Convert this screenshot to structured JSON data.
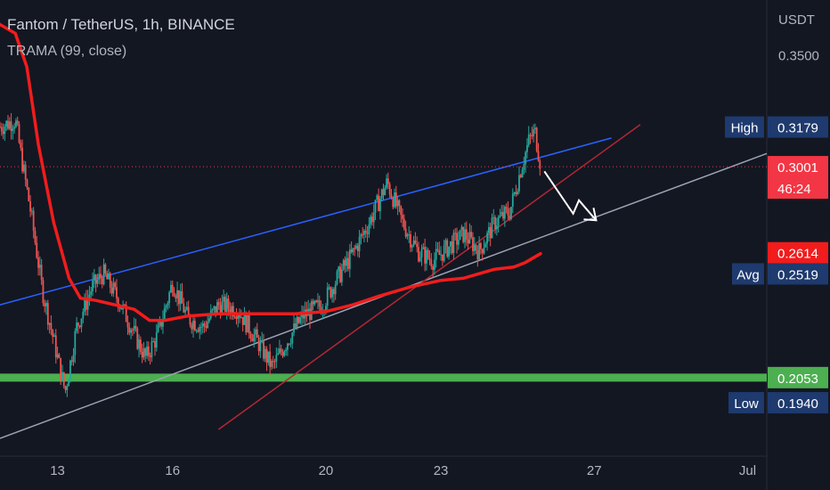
{
  "header": {
    "title": "Fantom / TetherUS, 1h, BINANCE",
    "indicator": "TRAMA (99, close)"
  },
  "chart_data": {
    "type": "candlestick",
    "currency": "USDT",
    "ylim": [
      0.17,
      0.375
    ],
    "y_ticks": [
      {
        "value": 0.35,
        "label": "0.3500"
      }
    ],
    "x_ticks": [
      {
        "day": 13,
        "label": "13"
      },
      {
        "day": 16,
        "label": "16"
      },
      {
        "day": 20,
        "label": "20"
      },
      {
        "day": 23,
        "label": "23"
      },
      {
        "day": 27,
        "label": "27"
      },
      {
        "day": 31,
        "label": "Jul"
      }
    ],
    "x_range_days": [
      11.5,
      31.5
    ],
    "price_labels": {
      "high": {
        "title": "High",
        "value": "0.3179",
        "price": 0.3179
      },
      "current": {
        "value": "0.3001",
        "countdown": "46:24",
        "price": 0.3001
      },
      "trama": {
        "value": "0.2614",
        "price": 0.2614
      },
      "avg": {
        "title": "Avg",
        "value": "0.2519",
        "price": 0.2519
      },
      "support": {
        "value": "0.2053",
        "price": 0.2053
      },
      "low": {
        "title": "Low",
        "value": "0.1940",
        "price": 0.194
      }
    },
    "close_path": [
      {
        "day": 11.5,
        "price": 0.318
      },
      {
        "day": 11.9,
        "price": 0.321
      },
      {
        "day": 12.1,
        "price": 0.3
      },
      {
        "day": 12.3,
        "price": 0.28
      },
      {
        "day": 12.6,
        "price": 0.245
      },
      {
        "day": 12.9,
        "price": 0.222
      },
      {
        "day": 13.2,
        "price": 0.199
      },
      {
        "day": 13.5,
        "price": 0.228
      },
      {
        "day": 13.9,
        "price": 0.246
      },
      {
        "day": 14.2,
        "price": 0.252
      },
      {
        "day": 14.6,
        "price": 0.24
      },
      {
        "day": 15.0,
        "price": 0.225
      },
      {
        "day": 15.3,
        "price": 0.214
      },
      {
        "day": 15.6,
        "price": 0.224
      },
      {
        "day": 16.0,
        "price": 0.248
      },
      {
        "day": 16.4,
        "price": 0.232
      },
      {
        "day": 16.8,
        "price": 0.228
      },
      {
        "day": 17.2,
        "price": 0.238
      },
      {
        "day": 17.7,
        "price": 0.236
      },
      {
        "day": 18.2,
        "price": 0.222
      },
      {
        "day": 18.6,
        "price": 0.21
      },
      {
        "day": 19.0,
        "price": 0.222
      },
      {
        "day": 19.4,
        "price": 0.233
      },
      {
        "day": 19.9,
        "price": 0.238
      },
      {
        "day": 20.3,
        "price": 0.25
      },
      {
        "day": 20.7,
        "price": 0.261
      },
      {
        "day": 21.1,
        "price": 0.274
      },
      {
        "day": 21.6,
        "price": 0.293
      },
      {
        "day": 22.0,
        "price": 0.275
      },
      {
        "day": 22.4,
        "price": 0.262
      },
      {
        "day": 22.8,
        "price": 0.258
      },
      {
        "day": 23.2,
        "price": 0.264
      },
      {
        "day": 23.6,
        "price": 0.27
      },
      {
        "day": 24.0,
        "price": 0.262
      },
      {
        "day": 24.4,
        "price": 0.275
      },
      {
        "day": 24.8,
        "price": 0.28
      },
      {
        "day": 25.1,
        "price": 0.3
      },
      {
        "day": 25.3,
        "price": 0.312
      },
      {
        "day": 25.45,
        "price": 0.316
      },
      {
        "day": 25.6,
        "price": 0.301
      }
    ],
    "trama_path": [
      {
        "day": 11.5,
        "price": 0.364
      },
      {
        "day": 11.9,
        "price": 0.36
      },
      {
        "day": 12.2,
        "price": 0.345
      },
      {
        "day": 12.5,
        "price": 0.31
      },
      {
        "day": 12.9,
        "price": 0.275
      },
      {
        "day": 13.3,
        "price": 0.25
      },
      {
        "day": 13.6,
        "price": 0.241
      },
      {
        "day": 14.0,
        "price": 0.24
      },
      {
        "day": 14.5,
        "price": 0.238
      },
      {
        "day": 15.0,
        "price": 0.236
      },
      {
        "day": 15.4,
        "price": 0.231
      },
      {
        "day": 15.8,
        "price": 0.231
      },
      {
        "day": 16.4,
        "price": 0.233
      },
      {
        "day": 17.2,
        "price": 0.234
      },
      {
        "day": 18.2,
        "price": 0.234
      },
      {
        "day": 19.2,
        "price": 0.234
      },
      {
        "day": 20.0,
        "price": 0.235
      },
      {
        "day": 20.7,
        "price": 0.238
      },
      {
        "day": 21.4,
        "price": 0.242
      },
      {
        "day": 22.2,
        "price": 0.246
      },
      {
        "day": 23.0,
        "price": 0.249
      },
      {
        "day": 23.6,
        "price": 0.25
      },
      {
        "day": 24.4,
        "price": 0.254
      },
      {
        "day": 24.9,
        "price": 0.255
      },
      {
        "day": 25.2,
        "price": 0.257
      },
      {
        "day": 25.6,
        "price": 0.261
      }
    ],
    "support_level": 0.2053,
    "trend_lines": [
      {
        "name": "upper-channel",
        "color": "#2962ff",
        "from": {
          "day": 11.5,
          "price": 0.238
        },
        "to": {
          "day": 27.45,
          "price": 0.313
        }
      },
      {
        "name": "lower-channel",
        "color": "#9ba3b5",
        "from": {
          "day": 11.5,
          "price": 0.178
        },
        "to": {
          "day": 31.5,
          "price": 0.306
        }
      },
      {
        "name": "inner-trend",
        "color": "#b22833",
        "from": {
          "day": 17.2,
          "price": 0.182
        },
        "to": {
          "day": 28.2,
          "price": 0.319
        }
      }
    ],
    "projection_path": [
      {
        "day": 25.7,
        "price": 0.298
      },
      {
        "day": 26.45,
        "price": 0.279
      },
      {
        "day": 26.6,
        "price": 0.285
      },
      {
        "day": 27.05,
        "price": 0.276
      }
    ],
    "colors": {
      "background": "#131722",
      "bull": "#26a69a",
      "bear": "#ef5350",
      "trama": "#f21c1c",
      "support": "#4caf50",
      "current": "#f23645",
      "label_blue": "#1e3a6e"
    }
  }
}
